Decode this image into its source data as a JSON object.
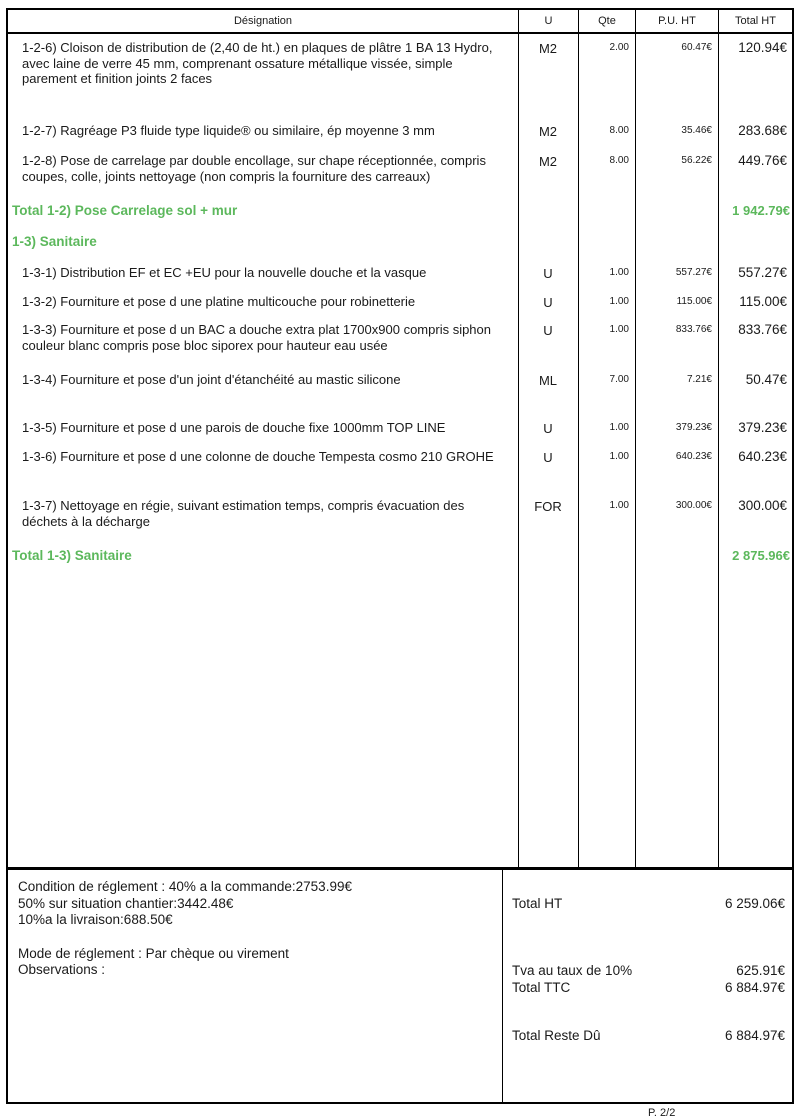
{
  "table": {
    "columns": {
      "designation": "Désignation",
      "unit": "U",
      "qty": "Qte",
      "unit_price": "P.U. HT",
      "total": "Total HT"
    },
    "rows": [
      {
        "type": "item",
        "designation": "1-2-6) Cloison de distribution de  (2,40 de ht.) en plaques de plâtre 1 BA 13 Hydro, avec laine de verre 45 mm, comprenant ossature métallique vissée, simple parement et finition joints 2 faces",
        "unit": "M2",
        "qty": "2.00",
        "unit_price": "60.47€",
        "total": "120.94€"
      },
      {
        "type": "item",
        "designation": "1-2-7) Ragréage P3 fluide type liquide® ou similaire, ép moyenne 3 mm",
        "unit": "M2",
        "qty": "8.00",
        "unit_price": "35.46€",
        "total": "283.68€"
      },
      {
        "type": "item",
        "designation": "1-2-8) Pose de carrelage par double encollage, sur chape réceptionnée, compris coupes, colle, joints nettoyage (non compris la fourniture des carreaux)",
        "unit": "M2",
        "qty": "8.00",
        "unit_price": "56.22€",
        "total": "449.76€"
      },
      {
        "type": "total",
        "designation": "Total 1-2) Pose Carrelage sol + mur",
        "total": "1 942.79€"
      },
      {
        "type": "section",
        "designation": "1-3) Sanitaire"
      },
      {
        "type": "item",
        "designation": "1-3-1) Distribution EF et EC +EU pour la nouvelle douche et la vasque",
        "unit": "U",
        "qty": "1.00",
        "unit_price": "557.27€",
        "total": "557.27€"
      },
      {
        "type": "item",
        "designation": "1-3-2) Fourniture et pose d une platine multicouche pour robinetterie",
        "unit": "U",
        "qty": "1.00",
        "unit_price": "115.00€",
        "total": "115.00€"
      },
      {
        "type": "item",
        "designation": "1-3-3) Fourniture et pose d un BAC a douche extra plat 1700x900 compris siphon couleur blanc  compris pose bloc siporex pour hauteur eau usée",
        "unit": "U",
        "qty": "1.00",
        "unit_price": "833.76€",
        "total": "833.76€"
      },
      {
        "type": "item",
        "designation": "1-3-4) Fourniture et pose d'un joint d'étanchéité au mastic silicone",
        "unit": "ML",
        "qty": "7.00",
        "unit_price": "7.21€",
        "total": "50.47€"
      },
      {
        "type": "item",
        "designation": "1-3-5) Fourniture et pose d une parois de douche fixe 1000mm TOP LINE",
        "unit": "U",
        "qty": "1.00",
        "unit_price": "379.23€",
        "total": "379.23€"
      },
      {
        "type": "item",
        "designation": "1-3-6) Fourniture et pose d une colonne de douche Tempesta cosmo 210 GROHE",
        "unit": "U",
        "qty": "1.00",
        "unit_price": "640.23€",
        "total": "640.23€"
      },
      {
        "type": "item",
        "designation": "1-3-7) Nettoyage en régie, suivant estimation temps, compris évacuation des déchets à la décharge",
        "unit": "FOR",
        "qty": "1.00",
        "unit_price": "300.00€",
        "total": "300.00€"
      },
      {
        "type": "total",
        "designation": "Total 1-3) Sanitaire",
        "total": "2 875.96€"
      }
    ]
  },
  "footer": {
    "payment_lines": [
      "Condition de réglement :  40% a la commande:2753.99€",
      "50% sur situation chantier:3442.48€",
      "10%a la livraison:688.50€"
    ],
    "mode_line": "Mode de réglement :  Par chèque ou virement",
    "observations_line": "Observations :",
    "totals": [
      {
        "label": "Total HT",
        "value": "6 259.06€"
      },
      {
        "label": "Tva au taux de 10%",
        "value": "625.91€"
      },
      {
        "label": "Total TTC",
        "value": "6 884.97€"
      },
      {
        "label": "Total Reste Dû",
        "value": "6 884.97€"
      }
    ],
    "page_number": "P. 2/2"
  },
  "colors": {
    "accent_green": "#5cb85c",
    "border": "#000000",
    "text": "#1a1a1a"
  }
}
